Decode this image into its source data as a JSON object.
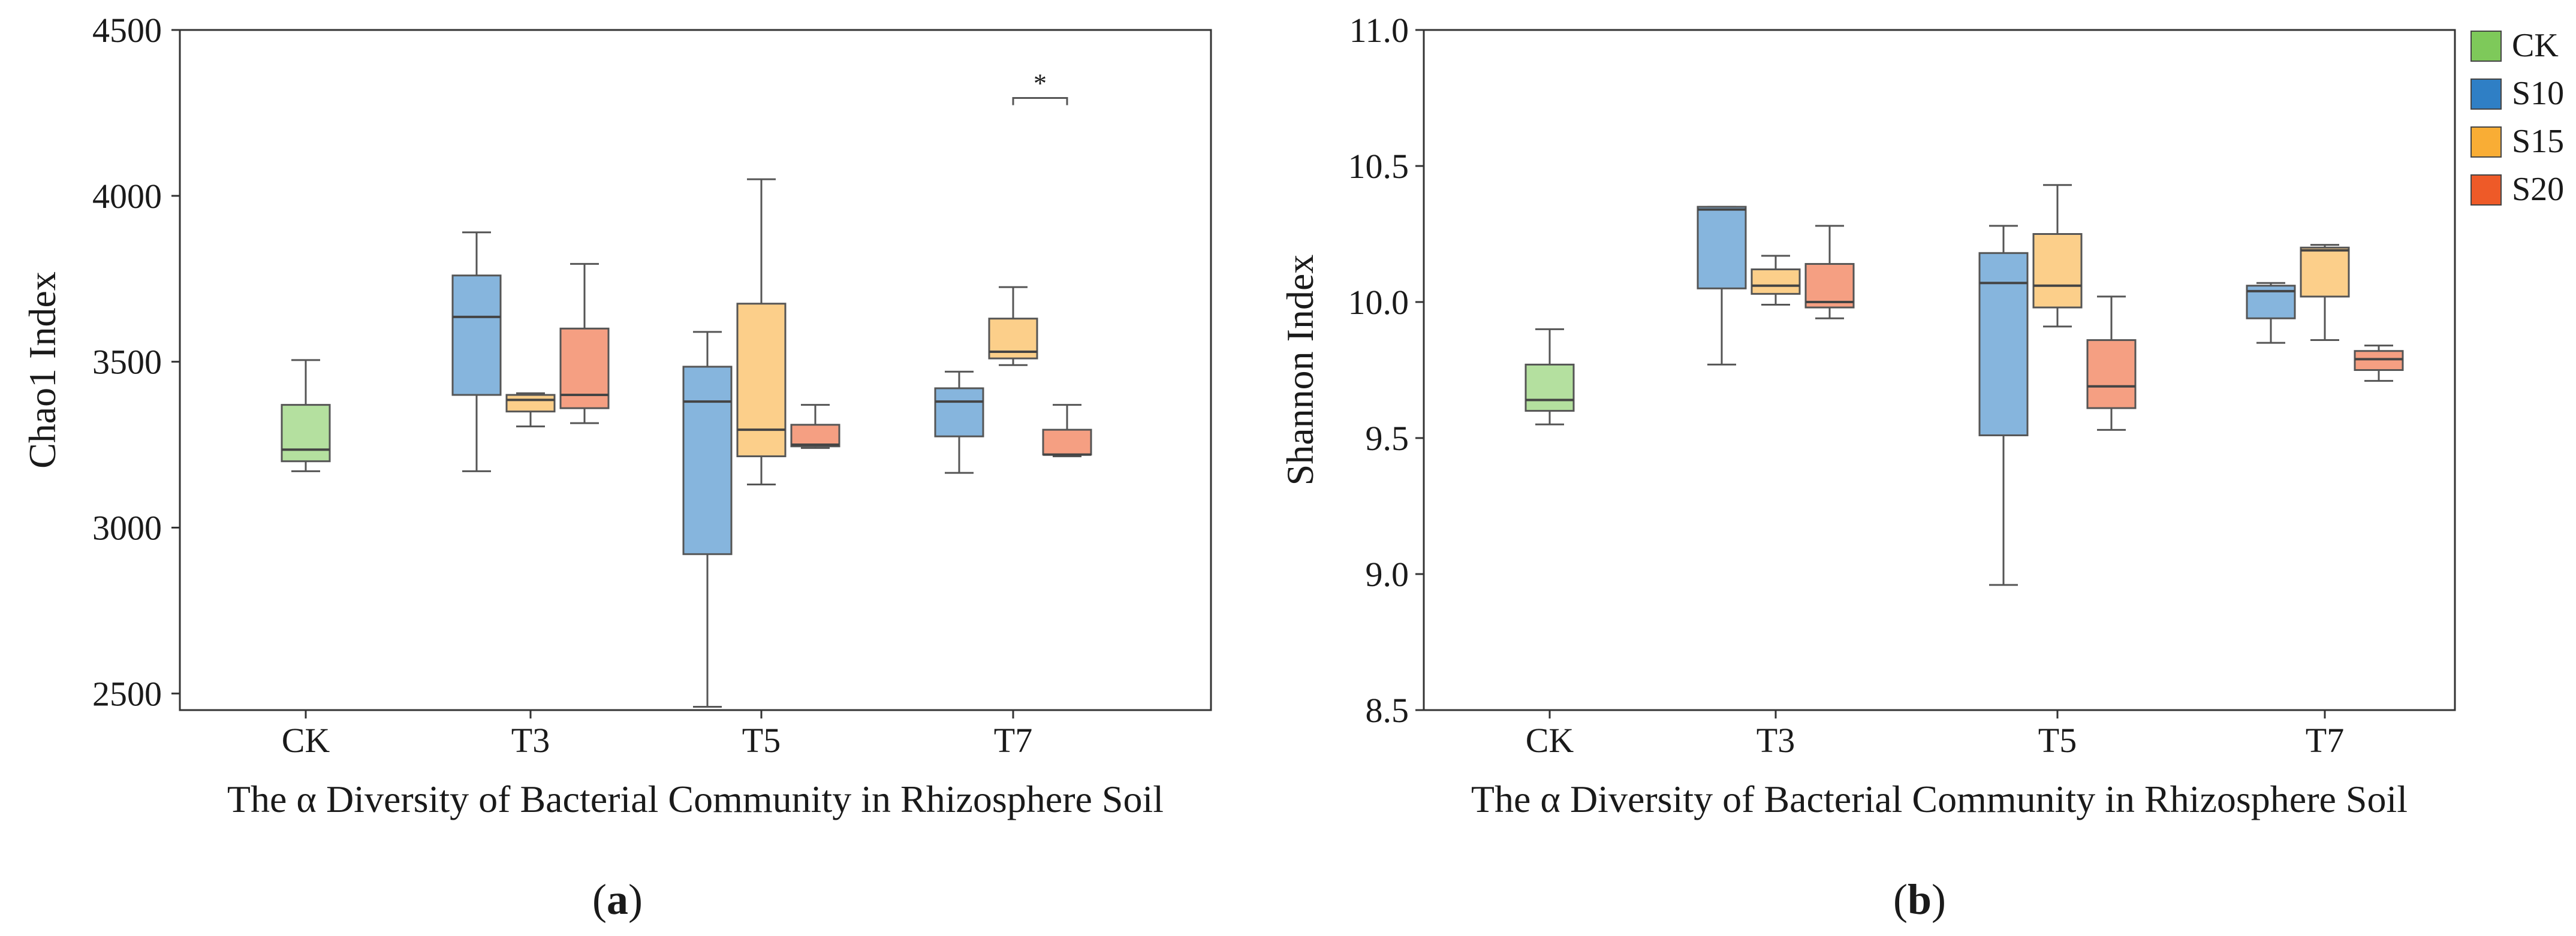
{
  "legend": {
    "entries": [
      {
        "label": "CK",
        "color": "#7ec95a"
      },
      {
        "label": "S10",
        "color": "#2f7fc5"
      },
      {
        "label": "S15",
        "color": "#f9ad35"
      },
      {
        "label": "S20",
        "color": "#ee5a28"
      }
    ]
  },
  "chart_data": [
    {
      "type": "box",
      "panel_label": "(a)",
      "panel_letter": "a",
      "xlabel": "The α Diversity of Bacterial Community in Rhizosphere Soil",
      "ylabel": "Chao1 Index",
      "ylim": [
        2450,
        4500
      ],
      "yticks": [
        2500,
        3000,
        3500,
        4000,
        4500
      ],
      "categories": [
        "CK",
        "T3",
        "T5",
        "T7"
      ],
      "boxes": [
        {
          "category": "CK",
          "group": "CK",
          "min": 3170,
          "q1": 3200,
          "median": 3235,
          "q3": 3370,
          "max": 3505
        },
        {
          "category": "T3",
          "group": "S10",
          "min": 3170,
          "q1": 3400,
          "median": 3635,
          "q3": 3760,
          "max": 3890
        },
        {
          "category": "T3",
          "group": "S15",
          "min": 3305,
          "q1": 3350,
          "median": 3385,
          "q3": 3400,
          "max": 3405
        },
        {
          "category": "T3",
          "group": "S20",
          "min": 3315,
          "q1": 3360,
          "median": 3400,
          "q3": 3600,
          "max": 3795
        },
        {
          "category": "T5",
          "group": "S10",
          "min": 2460,
          "q1": 2920,
          "median": 3380,
          "q3": 3485,
          "max": 3590
        },
        {
          "category": "T5",
          "group": "S15",
          "min": 3130,
          "q1": 3215,
          "median": 3295,
          "q3": 3675,
          "max": 4050
        },
        {
          "category": "T5",
          "group": "S20",
          "min": 3240,
          "q1": 3245,
          "median": 3250,
          "q3": 3310,
          "max": 3370
        },
        {
          "category": "T7",
          "group": "S10",
          "min": 3165,
          "q1": 3275,
          "median": 3380,
          "q3": 3420,
          "max": 3470
        },
        {
          "category": "T7",
          "group": "S15",
          "min": 3490,
          "q1": 3510,
          "median": 3530,
          "q3": 3630,
          "max": 3725
        },
        {
          "category": "T7",
          "group": "S20",
          "min": 3215,
          "q1": 3220,
          "median": 3220,
          "q3": 3295,
          "max": 3370
        }
      ],
      "significance": [
        {
          "category": "T7",
          "from_group": "S15",
          "to_group": "S20",
          "label": "*",
          "y": 4295
        }
      ]
    },
    {
      "type": "box",
      "panel_label": "(b)",
      "panel_letter": "b",
      "xlabel": "The α Diversity of Bacterial Community in Rhizosphere Soil",
      "ylabel": "Shannon Index",
      "ylim": [
        8.5,
        11.0
      ],
      "yticks": [
        "8.5",
        "9.0",
        "9.5",
        "10.0",
        "10.5",
        "11.0"
      ],
      "categories": [
        "CK",
        "T3",
        "T5",
        "T7"
      ],
      "boxes": [
        {
          "category": "CK",
          "group": "CK",
          "min": 9.55,
          "q1": 9.6,
          "median": 9.64,
          "q3": 9.77,
          "max": 9.9
        },
        {
          "category": "T3",
          "group": "S10",
          "min": 9.77,
          "q1": 10.05,
          "median": 10.34,
          "q3": 10.35,
          "max": 10.35
        },
        {
          "category": "T3",
          "group": "S15",
          "min": 9.99,
          "q1": 10.03,
          "median": 10.06,
          "q3": 10.12,
          "max": 10.17
        },
        {
          "category": "T3",
          "group": "S20",
          "min": 9.94,
          "q1": 9.98,
          "median": 10.0,
          "q3": 10.14,
          "max": 10.28
        },
        {
          "category": "T5",
          "group": "S10",
          "min": 8.96,
          "q1": 9.51,
          "median": 10.07,
          "q3": 10.18,
          "max": 10.28
        },
        {
          "category": "T5",
          "group": "S15",
          "min": 9.91,
          "q1": 9.98,
          "median": 10.06,
          "q3": 10.25,
          "max": 10.43
        },
        {
          "category": "T5",
          "group": "S20",
          "min": 9.53,
          "q1": 9.61,
          "median": 9.69,
          "q3": 9.86,
          "max": 10.02
        },
        {
          "category": "T7",
          "group": "S10",
          "min": 9.85,
          "q1": 9.94,
          "median": 10.04,
          "q3": 10.06,
          "max": 10.07
        },
        {
          "category": "T7",
          "group": "S15",
          "min": 9.86,
          "q1": 10.02,
          "median": 10.19,
          "q3": 10.2,
          "max": 10.21
        },
        {
          "category": "T7",
          "group": "S20",
          "min": 9.71,
          "q1": 9.75,
          "median": 9.79,
          "q3": 9.82,
          "max": 9.84
        }
      ],
      "significance": []
    }
  ]
}
